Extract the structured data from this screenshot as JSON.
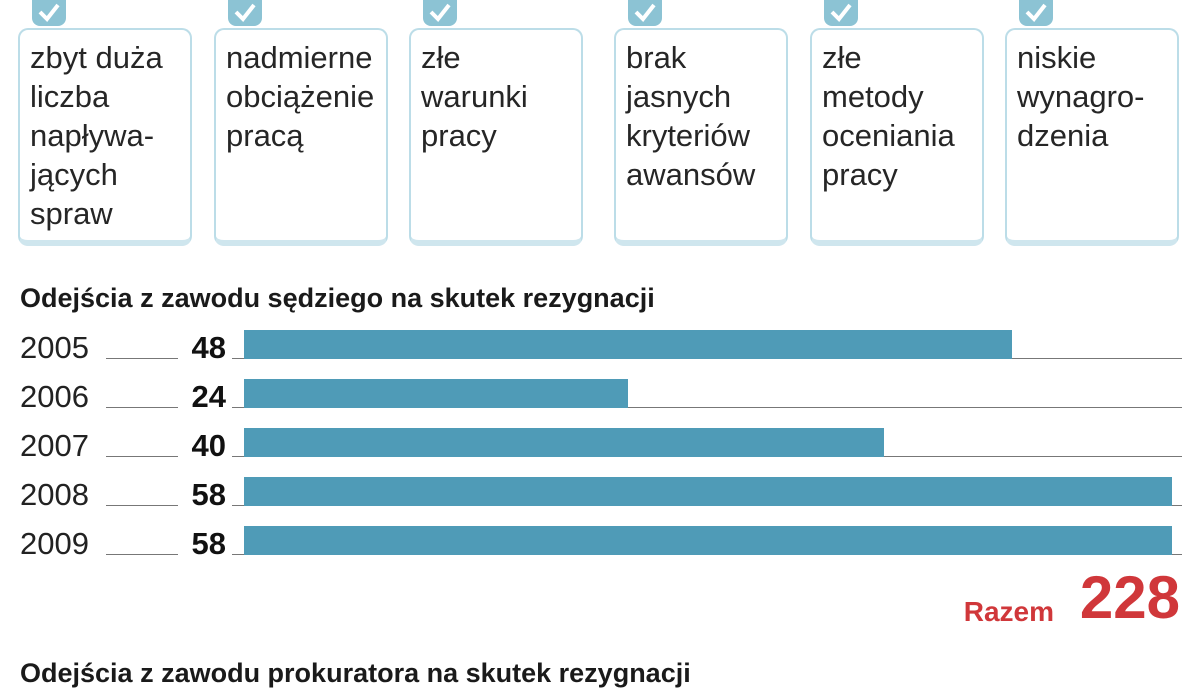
{
  "reasons": [
    "zbyt duża\nliczba\nnapływa-\njących\nspraw",
    "nadmierne\nobciążenie\npracą",
    "złe warunki\npracy",
    "brak\njasnych\nkryteriów\nawansów",
    "złe\nmetody\noceniania\npracy",
    "niskie\nwynagro-\ndzenia"
  ],
  "colors": {
    "bar": "#4f9bb7",
    "accent": "#d0373a",
    "card_border": "#bcdde8"
  },
  "chart_data": {
    "type": "bar",
    "orientation": "horizontal",
    "title": "Odejścia z zawodu sędziego na skutek rezygnacji",
    "categories": [
      "2005",
      "2006",
      "2007",
      "2008",
      "2009"
    ],
    "values": [
      48,
      24,
      40,
      58,
      58
    ],
    "xlim": [
      0,
      58
    ],
    "total_label": "Razem",
    "total": "228",
    "grid": false,
    "legend": "none"
  },
  "next_title": "Odejścia z zawodu prokuratora na skutek rezygnacji"
}
